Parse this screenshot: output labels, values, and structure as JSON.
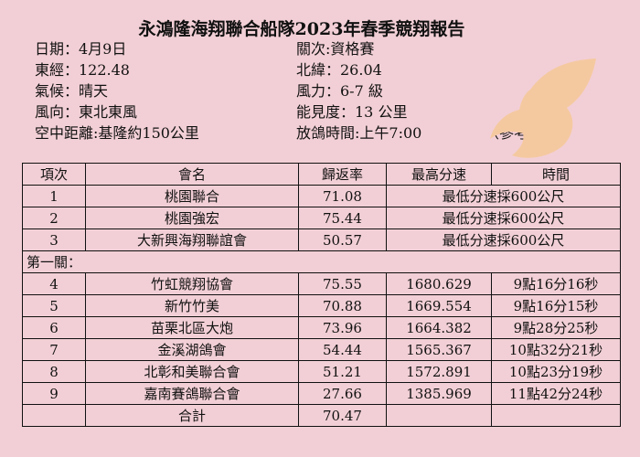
{
  "title": "永鴻隆海翔聯合船隊2023年春季競翔報告",
  "info": {
    "date": "日期：4月9日",
    "stage": "關次:資格賽",
    "longitude": "東經：122.48",
    "latitude": "北緯：26.04",
    "weather": "氣候：晴天",
    "wind_force": "風力：6-7 級",
    "wind_direction": "風向：東北東風",
    "visibility": "能見度：13 公里",
    "distance": "空中距離:基隆約150公里",
    "release_time": "放鴿時間:上午7:00",
    "reference": "（參考用）"
  },
  "bird": {
    "icon": "dove-icon",
    "color": "#f5c9a0"
  },
  "table": {
    "headers": [
      "項次",
      "會名",
      "歸返率",
      "最高分速",
      "時間"
    ],
    "group1": [
      {
        "no": "1",
        "name": "桃園聯合",
        "rate": "71.08",
        "note": "最低分速採600公尺"
      },
      {
        "no": "2",
        "name": "桃園強宏",
        "rate": "75.44",
        "note": "最低分速採600公尺"
      },
      {
        "no": "3",
        "name": "大新興海翔聯誼會",
        "rate": "50.57",
        "note": "最低分速採600公尺"
      }
    ],
    "section_label": "第一關：",
    "group2": [
      {
        "no": "4",
        "name": "竹虹競翔協會",
        "rate": "75.55",
        "speed": "1680.629",
        "time": "9點16分16秒"
      },
      {
        "no": "5",
        "name": "新竹竹美",
        "rate": "70.88",
        "speed": "1669.554",
        "time": "9點16分15秒"
      },
      {
        "no": "6",
        "name": "苗栗北區大炮",
        "rate": "73.96",
        "speed": "1664.382",
        "time": "9點28分25秒"
      },
      {
        "no": "7",
        "name": "金溪湖鴿會",
        "rate": "54.44",
        "speed": "1565.367",
        "time": "10點32分21秒"
      },
      {
        "no": "8",
        "name": "北彰和美聯合會",
        "rate": "51.21",
        "speed": "1572.891",
        "time": "10點23分19秒"
      },
      {
        "no": "9",
        "name": "嘉南賽鴿聯合會",
        "rate": "27.66",
        "speed": "1385.969",
        "time": "11點42分24秒"
      }
    ],
    "total_label": "合計",
    "total_rate": "70.47"
  }
}
